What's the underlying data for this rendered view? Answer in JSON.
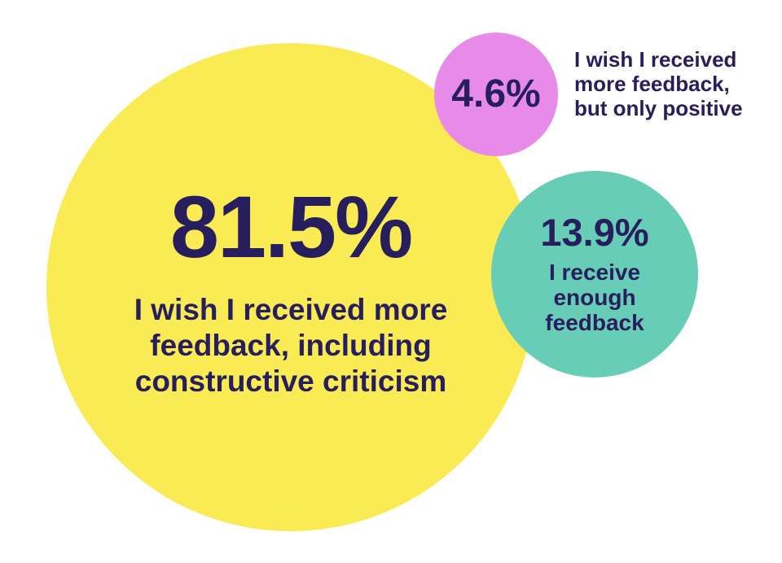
{
  "chart_data": {
    "type": "bubble",
    "title": "",
    "value_format": "percent",
    "background": "#ffffff",
    "text_color": "#261e5d",
    "legend_position": "none",
    "series": [
      {
        "label": "I wish I received more feedback, including constructive criticism",
        "value": 81.5,
        "unit": "%",
        "color": "#faeb55",
        "label_placement": "inside"
      },
      {
        "label": "I receive enough feedback",
        "value": 13.9,
        "unit": "%",
        "color": "#68cdb7",
        "label_placement": "inside"
      },
      {
        "label": "I wish I received more feedback, but only positive",
        "value": 4.6,
        "unit": "%",
        "color": "#e88ae8",
        "label_placement": "outside-right"
      }
    ]
  },
  "bubbles": {
    "main": {
      "pct": "81.5%",
      "lines": [
        "I wish I received more",
        "feedback, including",
        "constructive criticism"
      ]
    },
    "small": {
      "pct": "4.6%",
      "lines": [
        "I wish I received",
        "more feedback,",
        "but only positive"
      ]
    },
    "medium": {
      "pct": "13.9%",
      "lines": [
        "I receive",
        "enough",
        "feedback"
      ]
    }
  },
  "colors": {
    "bubble_main": "#faeb55",
    "bubble_small": "#e88ae8",
    "bubble_medium": "#68cdb7",
    "text": "#261e5d",
    "background": "#ffffff"
  }
}
